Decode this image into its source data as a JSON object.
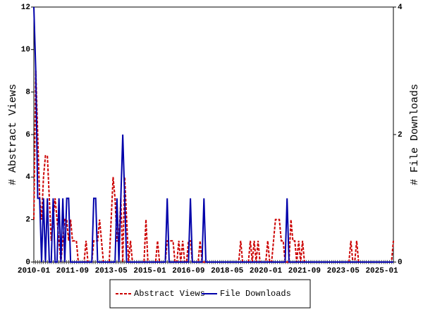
{
  "chart_data": {
    "type": "line",
    "ylabel": "# Abstract Views",
    "y2label": "# File Downloads",
    "categories": [
      "2010-01",
      null,
      null,
      null,
      null,
      null,
      null,
      null,
      null,
      null,
      null,
      null,
      null,
      null,
      null,
      null,
      null,
      null,
      null,
      null,
      "2011-09",
      null,
      null,
      null,
      null,
      null,
      null,
      null,
      null,
      null,
      null,
      null,
      null,
      null,
      null,
      null,
      null,
      null,
      null,
      null,
      "2013-05",
      null,
      null,
      null,
      null,
      null,
      null,
      null,
      null,
      null,
      null,
      null,
      null,
      null,
      null,
      null,
      null,
      null,
      null,
      null,
      "2015-01",
      null,
      null,
      null,
      null,
      null,
      null,
      null,
      null,
      null,
      null,
      null,
      null,
      null,
      null,
      null,
      null,
      null,
      null,
      null,
      "2016-09",
      null,
      null,
      null,
      null,
      null,
      null,
      null,
      null,
      null,
      null,
      null,
      null,
      null,
      null,
      null,
      null,
      null,
      null,
      null,
      "2018-05",
      null,
      null,
      null,
      null,
      null,
      null,
      null,
      null,
      null,
      null,
      null,
      null,
      null,
      null,
      null,
      null,
      null,
      null,
      null,
      "2020-01",
      null,
      null,
      null,
      null,
      null,
      null,
      null,
      null,
      null,
      null,
      null,
      null,
      null,
      null,
      null,
      null,
      null,
      null,
      null,
      "2021-09",
      null,
      null,
      null,
      null,
      null,
      null,
      null,
      null,
      null,
      null,
      null,
      null,
      null,
      null,
      null,
      null,
      null,
      null,
      null,
      "2023-05",
      null,
      null,
      null,
      null,
      null,
      null,
      null,
      null,
      null,
      null,
      null,
      null,
      null,
      null,
      null,
      null,
      null,
      null,
      null,
      "2025-01",
      null,
      null,
      null,
      null,
      null,
      null
    ],
    "series": [
      {
        "name": "Abstract Views",
        "color": "#cc0000",
        "dash": true,
        "values": [
          2,
          9,
          6,
          3,
          2,
          4,
          5,
          5,
          3,
          1,
          2,
          3,
          2,
          1,
          0,
          1,
          2,
          2,
          1,
          2,
          1,
          1,
          1,
          0,
          0,
          0,
          0,
          1,
          0,
          0,
          0,
          1,
          1,
          1,
          2,
          1,
          0,
          0,
          0,
          0,
          2,
          4,
          3,
          1,
          1,
          3,
          0,
          4,
          2,
          0,
          1,
          0,
          0,
          0,
          0,
          0,
          0,
          0,
          2,
          0,
          0,
          0,
          0,
          0,
          1,
          0,
          0,
          0,
          0,
          1,
          1,
          1,
          1,
          0,
          0,
          1,
          0,
          1,
          0,
          0,
          1,
          1,
          0,
          0,
          0,
          0,
          1,
          0,
          0,
          0,
          0,
          0,
          0,
          0,
          0,
          0,
          0,
          0,
          0,
          0,
          0,
          0,
          0,
          0,
          0,
          0,
          0,
          1,
          0,
          0,
          0,
          0,
          1,
          0,
          1,
          0,
          1,
          0,
          0,
          0,
          0,
          1,
          0,
          0,
          1,
          2,
          2,
          2,
          1,
          1,
          0,
          0,
          0,
          2,
          1,
          1,
          0,
          1,
          0,
          1,
          0,
          0,
          0,
          0,
          0,
          0,
          0,
          0,
          0,
          0,
          0,
          0,
          0,
          0,
          0,
          0,
          0,
          0,
          0,
          0,
          0,
          0,
          0,
          0,
          1,
          0,
          0,
          1,
          0,
          0,
          0,
          0,
          0,
          0,
          0,
          0,
          0,
          0,
          0,
          0,
          0,
          0,
          0,
          0,
          0,
          0,
          1
        ]
      },
      {
        "name": "File Downloads",
        "color": "#0000aa",
        "axis": "y2",
        "values": [
          4,
          3,
          1,
          1,
          0,
          1,
          0,
          1,
          0,
          0,
          1,
          0,
          0,
          1,
          0,
          1,
          0,
          1,
          1,
          0,
          0,
          0,
          0,
          0,
          0,
          0,
          0,
          0,
          0,
          0,
          0,
          1,
          1,
          0,
          0,
          0,
          0,
          0,
          0,
          0,
          0,
          0,
          0,
          1,
          0,
          1,
          2,
          1,
          0,
          0,
          0,
          0,
          0,
          0,
          0,
          0,
          0,
          0,
          0,
          0,
          0,
          0,
          0,
          0,
          0,
          0,
          0,
          0,
          0,
          1,
          0,
          0,
          0,
          0,
          0,
          0,
          0,
          0,
          0,
          0,
          0,
          1,
          0,
          0,
          0,
          0,
          0,
          0,
          1,
          0,
          0,
          0,
          0,
          0,
          0,
          0,
          0,
          0,
          0,
          0,
          0,
          0,
          0,
          0,
          0,
          0,
          0,
          0,
          0,
          0,
          0,
          0,
          0,
          0,
          0,
          0,
          0,
          0,
          0,
          0,
          0,
          0,
          0,
          0,
          0,
          0,
          0,
          0,
          0,
          0,
          0,
          1,
          0,
          0,
          0,
          0,
          0,
          0,
          0,
          0,
          0,
          0,
          0,
          0,
          0,
          0,
          0,
          0,
          0,
          0,
          0,
          0,
          0,
          0,
          0,
          0,
          0,
          0,
          0,
          0,
          0,
          0,
          0,
          0,
          0,
          0,
          0,
          0,
          0,
          0,
          0,
          0,
          0,
          0,
          0,
          0,
          0,
          0,
          0,
          0,
          0,
          0,
          0,
          0,
          0,
          0,
          0
        ]
      }
    ],
    "ylim": [
      0,
      12
    ],
    "yticks": [
      0,
      2,
      4,
      6,
      8,
      10,
      12
    ],
    "y2lim": [
      0,
      4
    ],
    "y2ticks": [
      0,
      2,
      4
    ],
    "legend": "bottom"
  }
}
